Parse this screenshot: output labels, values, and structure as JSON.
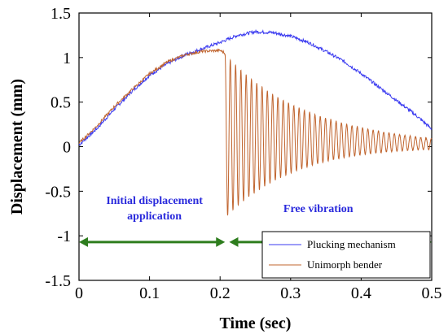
{
  "colors": {
    "plucking": "#3a3af0",
    "unimorph": "#c0642e",
    "arrow": "#2e7d1e",
    "annotation_text": "#2a2adc"
  },
  "chart_data": {
    "type": "line",
    "xlabel": "Time (sec)",
    "ylabel": "Displacement (mm)",
    "xlim": [
      0,
      0.5
    ],
    "ylim": [
      -1.5,
      1.5
    ],
    "x_ticks": [
      "0",
      "0.1",
      "0.2",
      "0.3",
      "0.4",
      "0.5"
    ],
    "y_ticks": [
      "1.5",
      "1",
      "0.5",
      "0",
      "-0.5",
      "-1",
      "-1.5"
    ],
    "grid": false,
    "legend_position": "bottom-right",
    "series": [
      {
        "name": "Plucking mechanism",
        "x": [
          0,
          0.025,
          0.05,
          0.075,
          0.1,
          0.125,
          0.15,
          0.175,
          0.2,
          0.225,
          0.25,
          0.275,
          0.3,
          0.325,
          0.35,
          0.375,
          0.4,
          0.425,
          0.45,
          0.475,
          0.5
        ],
        "y": [
          0.02,
          0.2,
          0.42,
          0.62,
          0.8,
          0.93,
          1.03,
          1.1,
          1.17,
          1.25,
          1.29,
          1.28,
          1.24,
          1.17,
          1.07,
          0.96,
          0.82,
          0.67,
          0.52,
          0.37,
          0.2
        ]
      },
      {
        "name": "Unimorph bender",
        "x": [
          0,
          0.025,
          0.05,
          0.075,
          0.1,
          0.125,
          0.15,
          0.175,
          0.2,
          0.205,
          0.207
        ],
        "y": [
          0.04,
          0.23,
          0.45,
          0.64,
          0.82,
          0.95,
          1.03,
          1.07,
          1.08,
          1.06,
          1.04
        ],
        "vibration": {
          "start": 0.207,
          "end": 0.5,
          "center_start": 0.12,
          "center_end": 0.03,
          "amplitude_start": 0.92,
          "amplitude_end": 0.06,
          "period": 0.0075
        }
      }
    ],
    "annotations": [
      {
        "text_lines": [
          "Initial displacement",
          "application"
        ],
        "x_range": [
          0,
          0.207
        ]
      },
      {
        "text_lines": [
          "Free vibration"
        ],
        "x_range": [
          0.213,
          0.5
        ]
      }
    ]
  }
}
